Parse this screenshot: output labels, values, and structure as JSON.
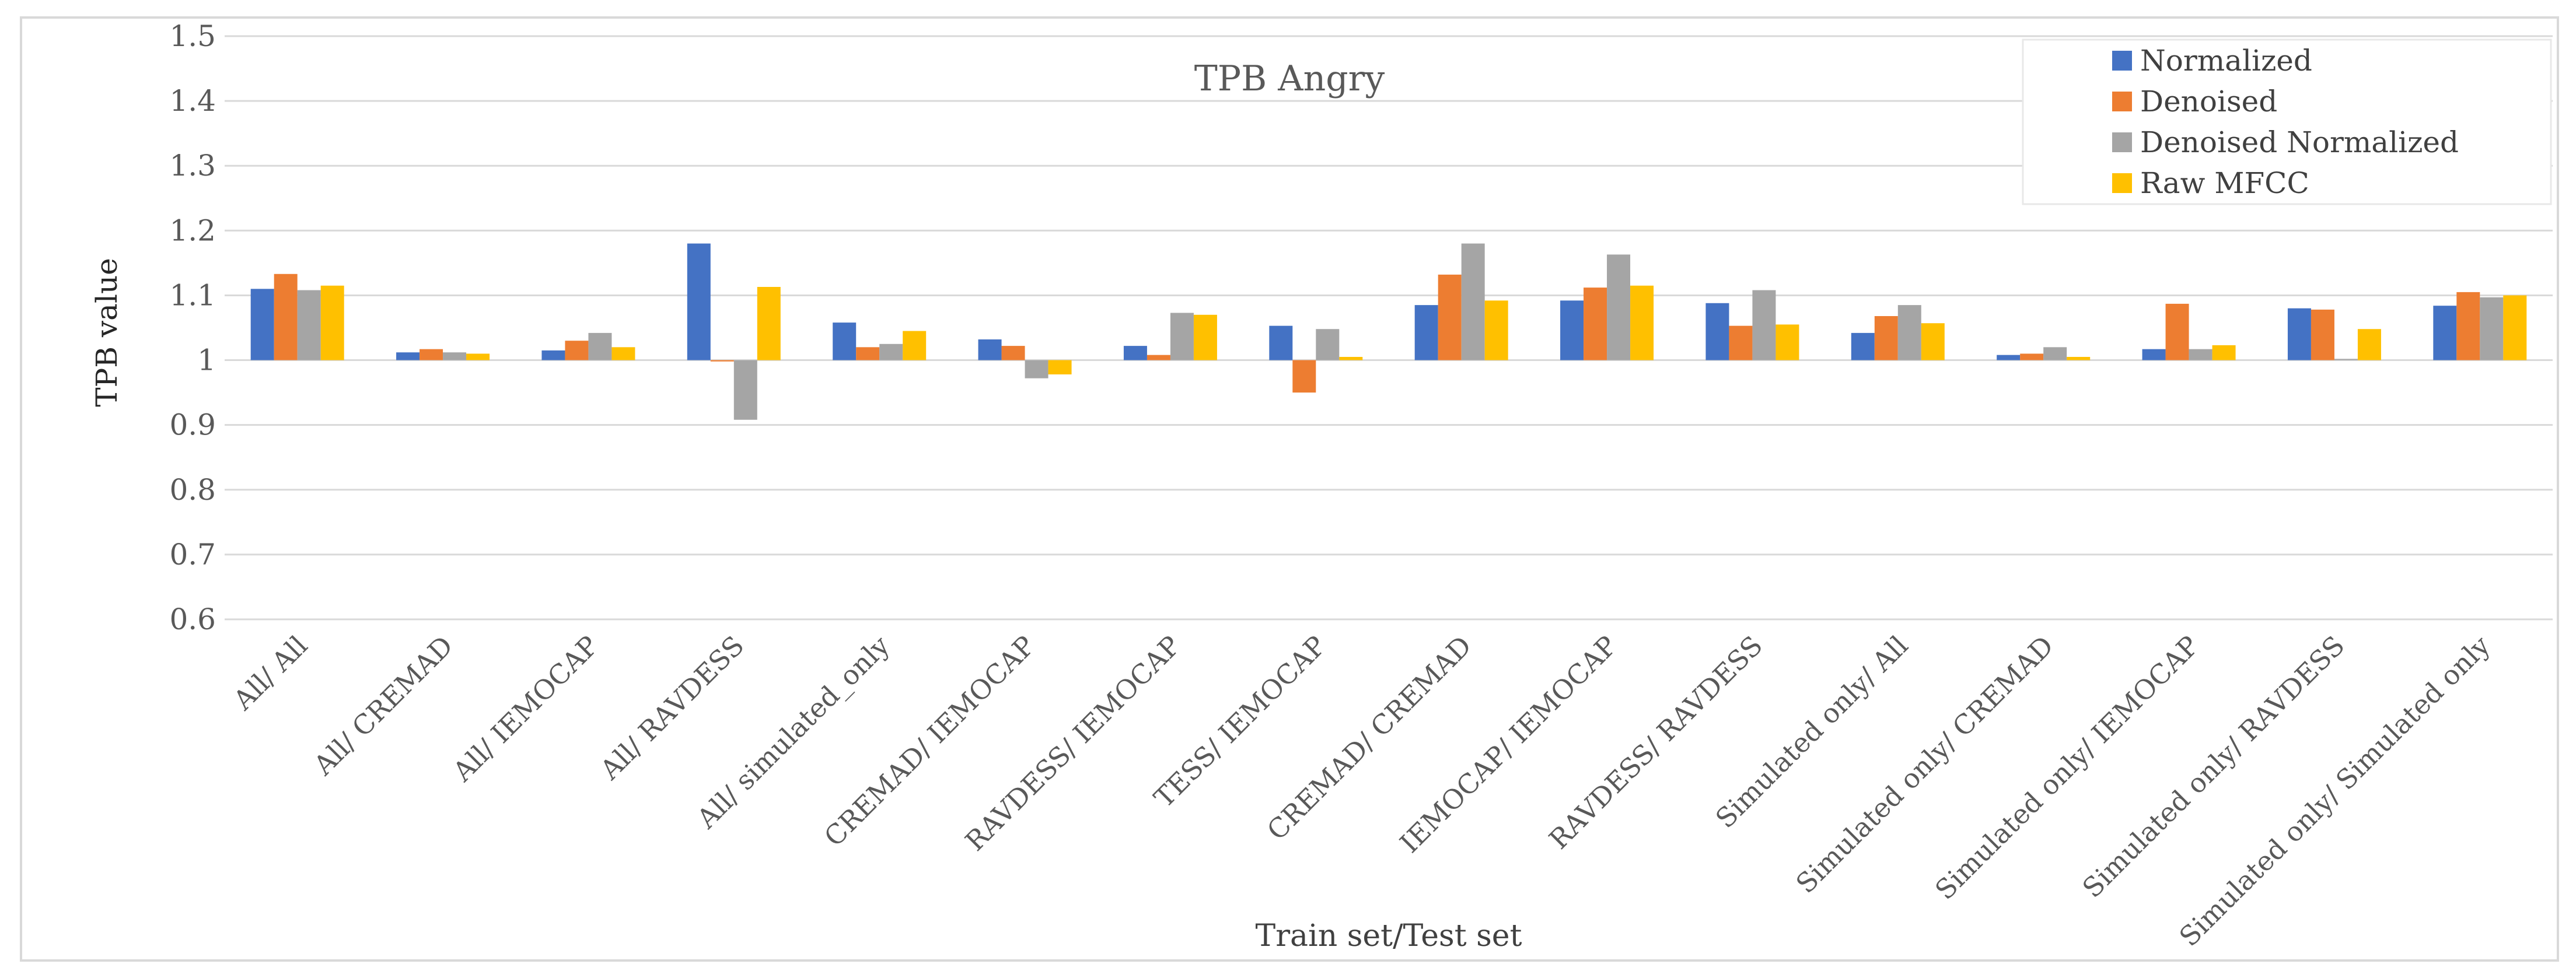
{
  "chart_data": {
    "type": "bar",
    "title": "TPB Angry",
    "xlabel": "Train set/Test set",
    "ylabel": "TPB value",
    "ylim": [
      0.6,
      1.5
    ],
    "yticks": [
      0.6,
      0.7,
      0.8,
      0.9,
      1,
      1.1,
      1.2,
      1.3,
      1.4,
      1.5
    ],
    "ytick_labels": [
      "0.6",
      "0.7",
      "0.8",
      "0.9",
      "1",
      "1.1",
      "1.2",
      "1.3",
      "1.4",
      "1.5"
    ],
    "baseline": 1,
    "grid": true,
    "legend_position": "top-right",
    "categories": [
      "All/ All",
      "All/ CREMAD",
      "All/ IEMOCAP",
      "All/ RAVDESS",
      "All/ simulated_only",
      "CREMAD/ IEMOCAP",
      "RAVDESS/ IEMOCAP",
      "TESS/ IEMOCAP",
      "CREMAD/ CREMAD",
      "IEMOCAP/ IEMOCAP",
      "RAVDESS/ RAVDESS",
      "Simulated only/ All",
      "Simulated only/ CREMAD",
      "Simulated only/ IEMOCAP",
      "Simulated only/ RAVDESS",
      "Simulated only/ Simulated only"
    ],
    "series": [
      {
        "name": "Normalized",
        "color": "#4472C4",
        "values": [
          1.11,
          1.012,
          1.015,
          1.18,
          1.058,
          1.032,
          1.022,
          1.053,
          1.085,
          1.092,
          1.088,
          1.042,
          1.008,
          1.017,
          1.08,
          1.084
        ]
      },
      {
        "name": "Denoised",
        "color": "#ED7D31",
        "values": [
          1.133,
          1.017,
          1.03,
          0.998,
          1.02,
          1.022,
          1.008,
          0.95,
          1.132,
          1.112,
          1.053,
          1.068,
          1.01,
          1.087,
          1.078,
          1.105
        ]
      },
      {
        "name": "Denoised Normalized",
        "color": "#A5A5A5",
        "values": [
          1.108,
          1.012,
          1.042,
          0.908,
          1.025,
          0.972,
          1.073,
          1.048,
          1.18,
          1.163,
          1.108,
          1.085,
          1.02,
          1.017,
          1.002,
          1.097
        ]
      },
      {
        "name": "Raw MFCC",
        "color": "#FFC000",
        "values": [
          1.115,
          1.01,
          1.02,
          1.113,
          1.045,
          0.978,
          1.07,
          1.005,
          1.092,
          1.115,
          1.055,
          1.057,
          1.005,
          1.023,
          1.048,
          1.1
        ]
      }
    ]
  }
}
